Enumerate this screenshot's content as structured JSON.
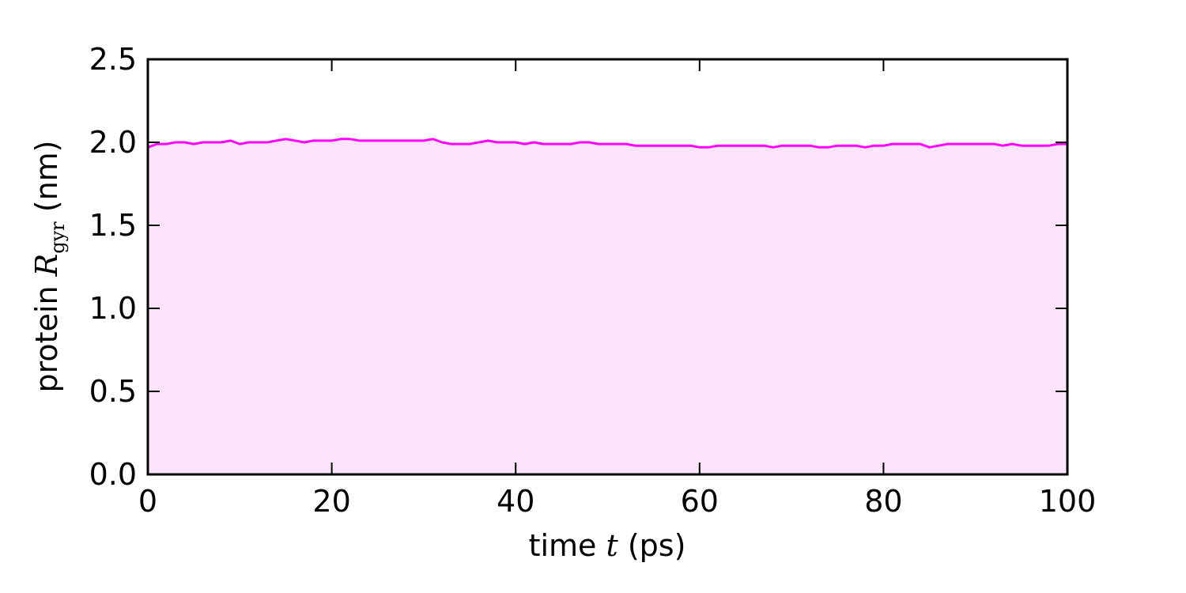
{
  "chart_data": {
    "type": "area",
    "title": "",
    "xlabel": {
      "prefix": "time ",
      "var": "t",
      "suffix": " (ps)"
    },
    "ylabel": {
      "prefix": "protein ",
      "var": "R",
      "sub": "gyr",
      "suffix": " (nm)"
    },
    "xlim": [
      0,
      100
    ],
    "ylim": [
      0,
      2.5
    ],
    "xticks": [
      {
        "value": 0,
        "label": "0"
      },
      {
        "value": 20,
        "label": "20"
      },
      {
        "value": 40,
        "label": "40"
      },
      {
        "value": 60,
        "label": "60"
      },
      {
        "value": 80,
        "label": "80"
      },
      {
        "value": 100,
        "label": "100"
      }
    ],
    "yticks": [
      {
        "value": 0.0,
        "label": "0.0"
      },
      {
        "value": 0.5,
        "label": "0.5"
      },
      {
        "value": 1.0,
        "label": "1.0"
      },
      {
        "value": 1.5,
        "label": "1.5"
      },
      {
        "value": 2.0,
        "label": "2.0"
      },
      {
        "value": 2.5,
        "label": "2.5"
      }
    ],
    "grid": false,
    "series": [
      {
        "line_color": "#ff00ff",
        "fill_color": "#ffe4ff",
        "x": [
          0,
          1,
          2,
          3,
          4,
          5,
          6,
          7,
          8,
          9,
          10,
          11,
          12,
          13,
          14,
          15,
          16,
          17,
          18,
          19,
          20,
          21,
          22,
          23,
          24,
          25,
          26,
          27,
          28,
          29,
          30,
          31,
          32,
          33,
          34,
          35,
          36,
          37,
          38,
          39,
          40,
          41,
          42,
          43,
          44,
          45,
          46,
          47,
          48,
          49,
          50,
          51,
          52,
          53,
          54,
          55,
          56,
          57,
          58,
          59,
          60,
          61,
          62,
          63,
          64,
          65,
          66,
          67,
          68,
          69,
          70,
          71,
          72,
          73,
          74,
          75,
          76,
          77,
          78,
          79,
          80,
          81,
          82,
          83,
          84,
          85,
          86,
          87,
          88,
          89,
          90,
          91,
          92,
          93,
          94,
          95,
          96,
          97,
          98,
          99,
          100
        ],
        "y": [
          1.97,
          1.99,
          1.99,
          2.0,
          2.0,
          1.99,
          2.0,
          2.0,
          2.0,
          2.01,
          1.99,
          2.0,
          2.0,
          2.0,
          2.01,
          2.02,
          2.01,
          2.0,
          2.01,
          2.01,
          2.01,
          2.02,
          2.02,
          2.01,
          2.01,
          2.01,
          2.01,
          2.01,
          2.01,
          2.01,
          2.01,
          2.02,
          2.0,
          1.99,
          1.99,
          1.99,
          2.0,
          2.01,
          2.0,
          2.0,
          2.0,
          1.99,
          2.0,
          1.99,
          1.99,
          1.99,
          1.99,
          2.0,
          2.0,
          1.99,
          1.99,
          1.99,
          1.99,
          1.98,
          1.98,
          1.98,
          1.98,
          1.98,
          1.98,
          1.98,
          1.97,
          1.97,
          1.98,
          1.98,
          1.98,
          1.98,
          1.98,
          1.98,
          1.97,
          1.98,
          1.98,
          1.98,
          1.98,
          1.97,
          1.97,
          1.98,
          1.98,
          1.98,
          1.97,
          1.98,
          1.98,
          1.99,
          1.99,
          1.99,
          1.99,
          1.97,
          1.98,
          1.99,
          1.99,
          1.99,
          1.99,
          1.99,
          1.99,
          1.98,
          1.99,
          1.98,
          1.98,
          1.98,
          1.98,
          1.99,
          1.99
        ]
      }
    ]
  }
}
